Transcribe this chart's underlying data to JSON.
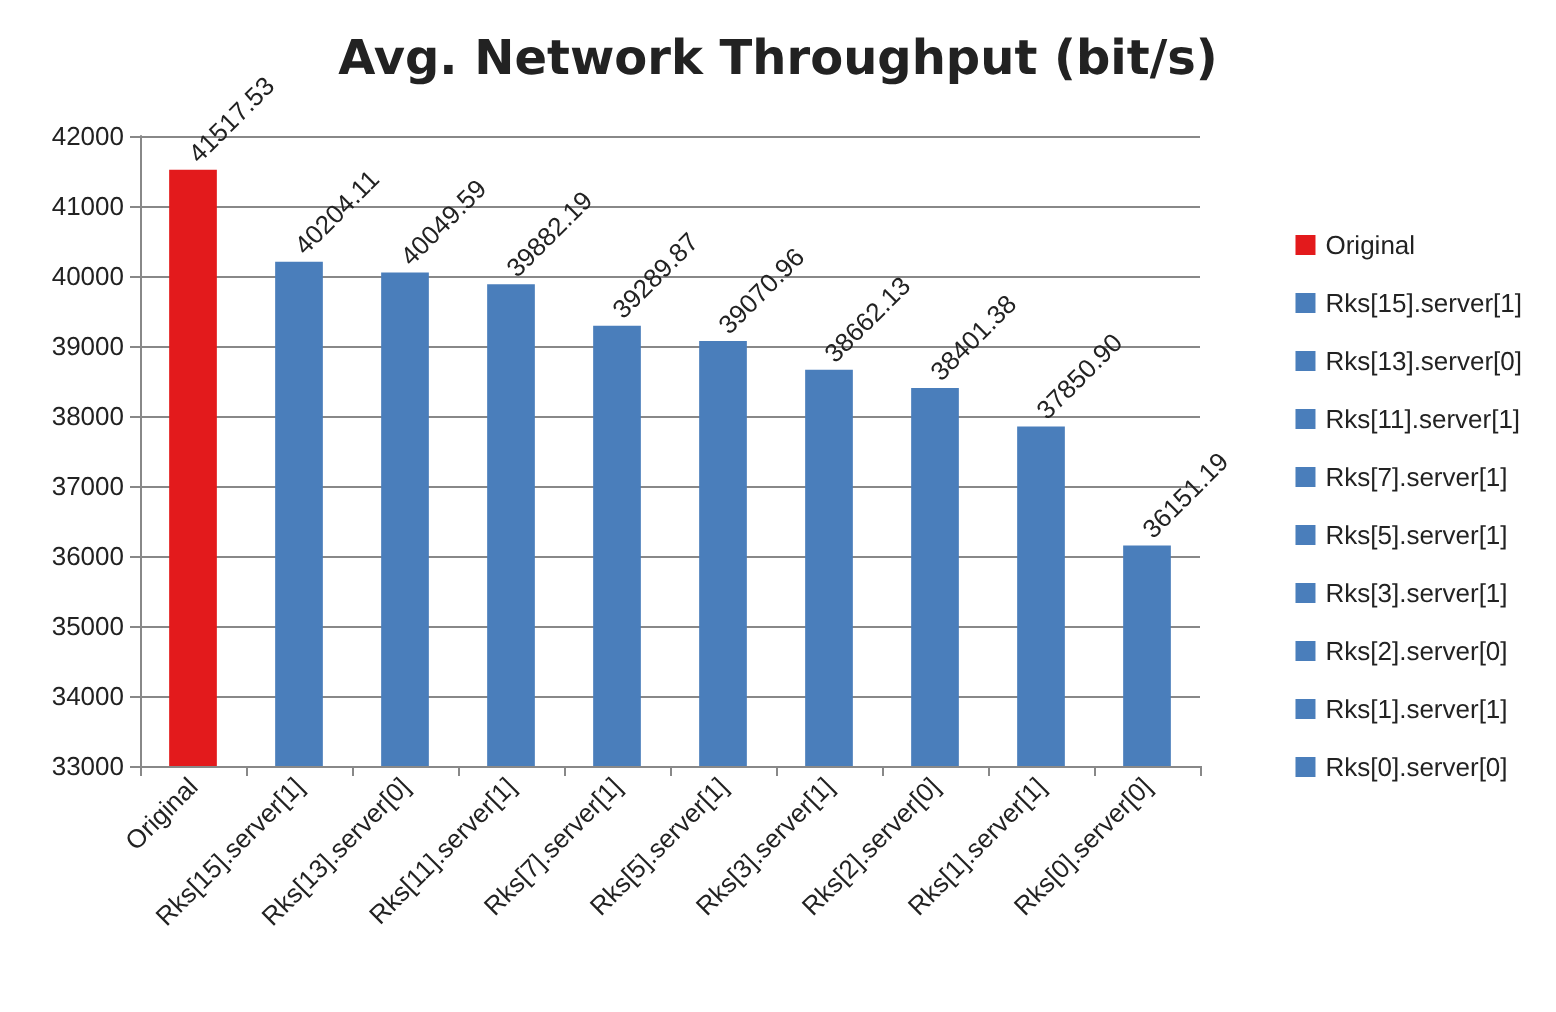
{
  "chart_data": {
    "type": "bar",
    "title": "Avg. Network Throughput (bit/s)",
    "categories": [
      "Original",
      "Rks[15].server[1]",
      "Rks[13].server[0]",
      "Rks[11].server[1]",
      "Rks[7].server[1]",
      "Rks[5].server[1]",
      "Rks[3].server[1]",
      "Rks[2].server[0]",
      "Rks[1].server[1]",
      "Rks[0].server[0]"
    ],
    "series": [
      {
        "name": "Original",
        "color": "#e31a1c",
        "values": [
          41517.53,
          null,
          null,
          null,
          null,
          null,
          null,
          null,
          null,
          null
        ],
        "value_labels": [
          "41517.53",
          null,
          null,
          null,
          null,
          null,
          null,
          null,
          null,
          null
        ]
      },
      {
        "name": "Rks[15].server[1]",
        "color": "#4a7ebb",
        "values": [
          null,
          40204.11,
          null,
          null,
          null,
          null,
          null,
          null,
          null,
          null
        ],
        "value_labels": [
          null,
          "40204.11",
          null,
          null,
          null,
          null,
          null,
          null,
          null,
          null
        ]
      },
      {
        "name": "Rks[13].server[0]",
        "color": "#4a7ebb",
        "values": [
          null,
          null,
          40049.59,
          null,
          null,
          null,
          null,
          null,
          null,
          null
        ],
        "value_labels": [
          null,
          null,
          "40049.59",
          null,
          null,
          null,
          null,
          null,
          null,
          null
        ]
      },
      {
        "name": "Rks[11].server[1]",
        "color": "#4a7ebb",
        "values": [
          null,
          null,
          null,
          39882.19,
          null,
          null,
          null,
          null,
          null,
          null
        ],
        "value_labels": [
          null,
          null,
          null,
          "39882.19",
          null,
          null,
          null,
          null,
          null,
          null
        ]
      },
      {
        "name": "Rks[7].server[1]",
        "color": "#4a7ebb",
        "values": [
          null,
          null,
          null,
          null,
          39289.87,
          null,
          null,
          null,
          null,
          null
        ],
        "value_labels": [
          null,
          null,
          null,
          null,
          "39289.87",
          null,
          null,
          null,
          null,
          null
        ]
      },
      {
        "name": "Rks[5].server[1]",
        "color": "#4a7ebb",
        "values": [
          null,
          null,
          null,
          null,
          null,
          39070.96,
          null,
          null,
          null,
          null
        ],
        "value_labels": [
          null,
          null,
          null,
          null,
          null,
          "39070.96",
          null,
          null,
          null,
          null
        ]
      },
      {
        "name": "Rks[3].server[1]",
        "color": "#4a7ebb",
        "values": [
          null,
          null,
          null,
          null,
          null,
          null,
          38662.13,
          null,
          null,
          null
        ],
        "value_labels": [
          null,
          null,
          null,
          null,
          null,
          null,
          "38662.13",
          null,
          null,
          null
        ]
      },
      {
        "name": "Rks[2].server[0]",
        "color": "#4a7ebb",
        "values": [
          null,
          null,
          null,
          null,
          null,
          null,
          null,
          38401.38,
          null,
          null
        ],
        "value_labels": [
          null,
          null,
          null,
          null,
          null,
          null,
          null,
          "38401.38",
          null,
          null
        ]
      },
      {
        "name": "Rks[1].server[1]",
        "color": "#4a7ebb",
        "values": [
          null,
          null,
          null,
          null,
          null,
          null,
          null,
          null,
          37850.9,
          null
        ],
        "value_labels": [
          null,
          null,
          null,
          null,
          null,
          null,
          null,
          null,
          "37850.90",
          null
        ]
      },
      {
        "name": "Rks[0].server[0]",
        "color": "#4a7ebb",
        "values": [
          null,
          null,
          null,
          null,
          null,
          null,
          null,
          null,
          null,
          36151.19
        ],
        "value_labels": [
          null,
          null,
          null,
          null,
          null,
          null,
          null,
          null,
          null,
          "36151.19"
        ]
      }
    ],
    "ylim": [
      33000,
      42000
    ],
    "yticks": [
      33000,
      34000,
      35000,
      36000,
      37000,
      38000,
      39000,
      40000,
      41000,
      42000
    ],
    "grid": "y",
    "legend": "right"
  }
}
